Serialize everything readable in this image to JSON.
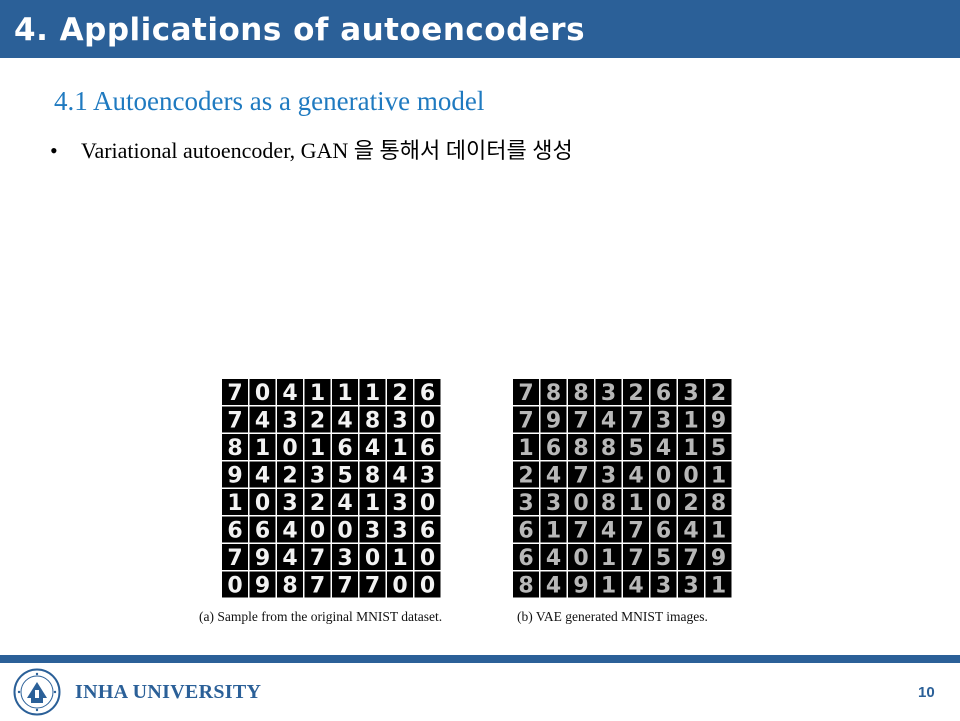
{
  "slide": {
    "title": "4. Applications of autoencoders",
    "subtitle": "4.1 Autoencoders as a generative model",
    "bullet": "Variational autoencoder, GAN 을 통해서 데이터를 생성",
    "page_number": "10"
  },
  "figures": [
    {
      "caption": "(a) Sample from the original MNIST dataset.",
      "digits": [
        "70411126",
        "74324830",
        "81016416",
        "94235843",
        "10324130",
        "66400336",
        "79473010",
        "09877700"
      ]
    },
    {
      "caption": "(b) VAE generated MNIST images.",
      "digits": [
        "78832632",
        "79747319",
        "16885415",
        "24734001",
        "33081028",
        "61747641",
        "64017579",
        "84914331"
      ]
    }
  ],
  "footer": {
    "university": "INHA UNIVERSITY"
  },
  "colors": {
    "brand_blue": "#2b6098",
    "subtitle_blue": "#1f7ac0"
  }
}
